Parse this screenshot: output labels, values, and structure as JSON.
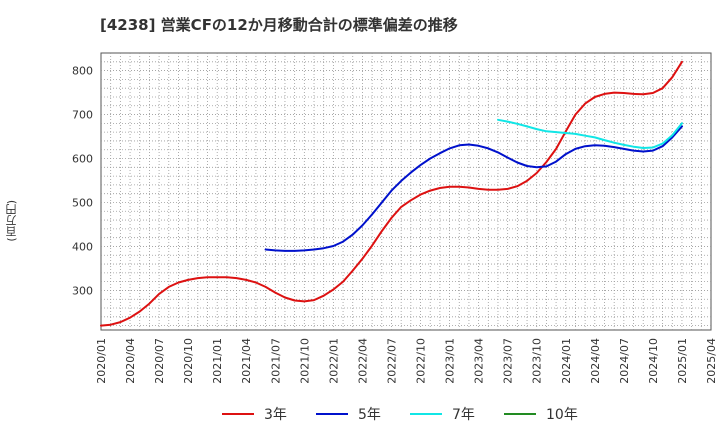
{
  "chart_data": {
    "type": "line",
    "title": "[4238]  営業CFの12か月移動合計の標準偏差の推移",
    "xlabel": "",
    "ylabel": "(百万円)",
    "ylim": [
      210,
      840
    ],
    "yticks": [
      300,
      400,
      500,
      600,
      700,
      800
    ],
    "x_ticks": [
      "2020/01",
      "2020/04",
      "2020/07",
      "2020/10",
      "2021/01",
      "2021/04",
      "2021/07",
      "2021/10",
      "2022/01",
      "2022/04",
      "2022/07",
      "2022/10",
      "2023/01",
      "2023/04",
      "2023/07",
      "2023/10",
      "2024/01",
      "2024/04",
      "2024/07",
      "2024/10",
      "2025/01",
      "2025/04"
    ],
    "grid": true,
    "legend_position": "bottom",
    "series": [
      {
        "name": "3年",
        "color": "#dd1111",
        "points": [
          [
            "2020/01",
            220
          ],
          [
            "2020/02",
            222
          ],
          [
            "2020/03",
            228
          ],
          [
            "2020/04",
            238
          ],
          [
            "2020/05",
            252
          ],
          [
            "2020/06",
            270
          ],
          [
            "2020/07",
            292
          ],
          [
            "2020/08",
            308
          ],
          [
            "2020/09",
            318
          ],
          [
            "2020/10",
            324
          ],
          [
            "2020/11",
            328
          ],
          [
            "2020/12",
            330
          ],
          [
            "2021/01",
            330
          ],
          [
            "2021/02",
            330
          ],
          [
            "2021/03",
            328
          ],
          [
            "2021/04",
            324
          ],
          [
            "2021/05",
            318
          ],
          [
            "2021/06",
            308
          ],
          [
            "2021/07",
            295
          ],
          [
            "2021/08",
            284
          ],
          [
            "2021/09",
            277
          ],
          [
            "2021/10",
            275
          ],
          [
            "2021/11",
            278
          ],
          [
            "2021/12",
            288
          ],
          [
            "2022/01",
            302
          ],
          [
            "2022/02",
            320
          ],
          [
            "2022/03",
            345
          ],
          [
            "2022/04",
            372
          ],
          [
            "2022/05",
            402
          ],
          [
            "2022/06",
            435
          ],
          [
            "2022/07",
            465
          ],
          [
            "2022/08",
            490
          ],
          [
            "2022/09",
            505
          ],
          [
            "2022/10",
            518
          ],
          [
            "2022/11",
            527
          ],
          [
            "2022/12",
            533
          ],
          [
            "2023/01",
            536
          ],
          [
            "2023/02",
            536
          ],
          [
            "2023/03",
            534
          ],
          [
            "2023/04",
            531
          ],
          [
            "2023/05",
            529
          ],
          [
            "2023/06",
            529
          ],
          [
            "2023/07",
            531
          ],
          [
            "2023/08",
            537
          ],
          [
            "2023/09",
            549
          ],
          [
            "2023/10",
            567
          ],
          [
            "2023/11",
            592
          ],
          [
            "2023/12",
            622
          ],
          [
            "2024/01",
            662
          ],
          [
            "2024/02",
            700
          ],
          [
            "2024/03",
            725
          ],
          [
            "2024/04",
            740
          ],
          [
            "2024/05",
            747
          ],
          [
            "2024/06",
            750
          ],
          [
            "2024/07",
            749
          ],
          [
            "2024/08",
            747
          ],
          [
            "2024/09",
            746
          ],
          [
            "2024/10",
            749
          ],
          [
            "2024/11",
            760
          ],
          [
            "2024/12",
            785
          ],
          [
            "2025/01",
            820
          ]
        ]
      },
      {
        "name": "5年",
        "color": "#0011cc",
        "points": [
          [
            "2021/06",
            393
          ],
          [
            "2021/07",
            391
          ],
          [
            "2021/08",
            390
          ],
          [
            "2021/09",
            390
          ],
          [
            "2021/10",
            391
          ],
          [
            "2021/11",
            393
          ],
          [
            "2021/12",
            396
          ],
          [
            "2022/01",
            401
          ],
          [
            "2022/02",
            411
          ],
          [
            "2022/03",
            427
          ],
          [
            "2022/04",
            448
          ],
          [
            "2022/05",
            473
          ],
          [
            "2022/06",
            500
          ],
          [
            "2022/07",
            527
          ],
          [
            "2022/08",
            549
          ],
          [
            "2022/09",
            568
          ],
          [
            "2022/10",
            585
          ],
          [
            "2022/11",
            600
          ],
          [
            "2022/12",
            612
          ],
          [
            "2023/01",
            623
          ],
          [
            "2023/02",
            630
          ],
          [
            "2023/03",
            632
          ],
          [
            "2023/04",
            629
          ],
          [
            "2023/05",
            623
          ],
          [
            "2023/06",
            614
          ],
          [
            "2023/07",
            602
          ],
          [
            "2023/08",
            591
          ],
          [
            "2023/09",
            583
          ],
          [
            "2023/10",
            580
          ],
          [
            "2023/11",
            582
          ],
          [
            "2023/12",
            593
          ],
          [
            "2024/01",
            610
          ],
          [
            "2024/02",
            622
          ],
          [
            "2024/03",
            628
          ],
          [
            "2024/04",
            630
          ],
          [
            "2024/05",
            629
          ],
          [
            "2024/06",
            626
          ],
          [
            "2024/07",
            622
          ],
          [
            "2024/08",
            618
          ],
          [
            "2024/09",
            616
          ],
          [
            "2024/10",
            618
          ],
          [
            "2024/11",
            628
          ],
          [
            "2024/12",
            648
          ],
          [
            "2025/01",
            673
          ]
        ]
      },
      {
        "name": "7年",
        "color": "#11e6e6",
        "points": [
          [
            "2023/06",
            688
          ],
          [
            "2023/07",
            684
          ],
          [
            "2023/08",
            679
          ],
          [
            "2023/09",
            673
          ],
          [
            "2023/10",
            667
          ],
          [
            "2023/11",
            662
          ],
          [
            "2023/12",
            660
          ],
          [
            "2024/01",
            658
          ],
          [
            "2024/02",
            656
          ],
          [
            "2024/03",
            652
          ],
          [
            "2024/04",
            648
          ],
          [
            "2024/05",
            642
          ],
          [
            "2024/06",
            636
          ],
          [
            "2024/07",
            631
          ],
          [
            "2024/08",
            627
          ],
          [
            "2024/09",
            624
          ],
          [
            "2024/10",
            625
          ],
          [
            "2024/11",
            634
          ],
          [
            "2024/12",
            653
          ],
          [
            "2025/01",
            680
          ]
        ]
      },
      {
        "name": "10年",
        "color": "#228B22",
        "points": []
      }
    ]
  }
}
